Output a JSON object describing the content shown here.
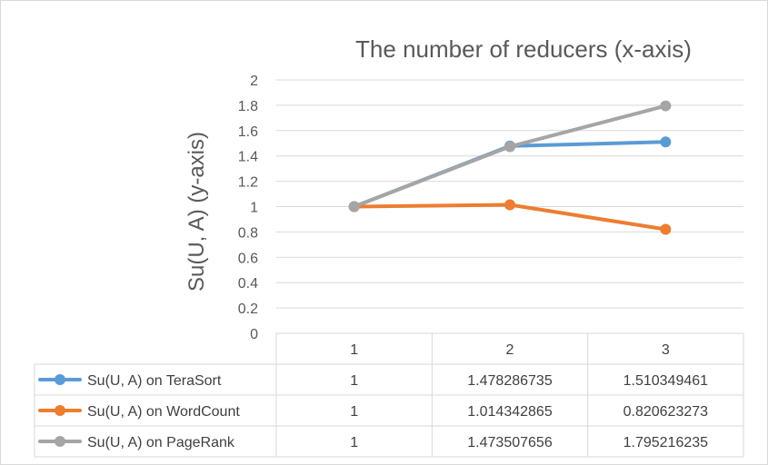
{
  "chart_data": {
    "type": "line",
    "title": "The number of reducers (x-axis)",
    "ylabel": "Su(U, A) (y-axis)",
    "xlabel": "",
    "categories": [
      "1",
      "2",
      "3"
    ],
    "ylim": [
      0,
      2
    ],
    "yticks": [
      "0",
      "0.2",
      "0.4",
      "0.6",
      "0.8",
      "1",
      "1.2",
      "1.4",
      "1.6",
      "1.8",
      "2"
    ],
    "grid": true,
    "legend": "data-table",
    "series": [
      {
        "name": "Su(U, A) on TeraSort",
        "values": [
          1,
          1.478286735,
          1.510349461
        ],
        "labels": [
          "1",
          "1.478286735",
          "1.510349461"
        ],
        "color": "#5b9bd5"
      },
      {
        "name": "Su(U, A) on WordCount",
        "values": [
          1,
          1.014342865,
          0.820623273
        ],
        "labels": [
          "1",
          "1.014342865",
          "0.820623273"
        ],
        "color": "#ed7d31"
      },
      {
        "name": "Su(U, A) on PageRank",
        "values": [
          1,
          1.473507656,
          1.795216235
        ],
        "labels": [
          "1",
          "1.473507656",
          "1.795216235"
        ],
        "color": "#a5a5a5"
      }
    ]
  }
}
